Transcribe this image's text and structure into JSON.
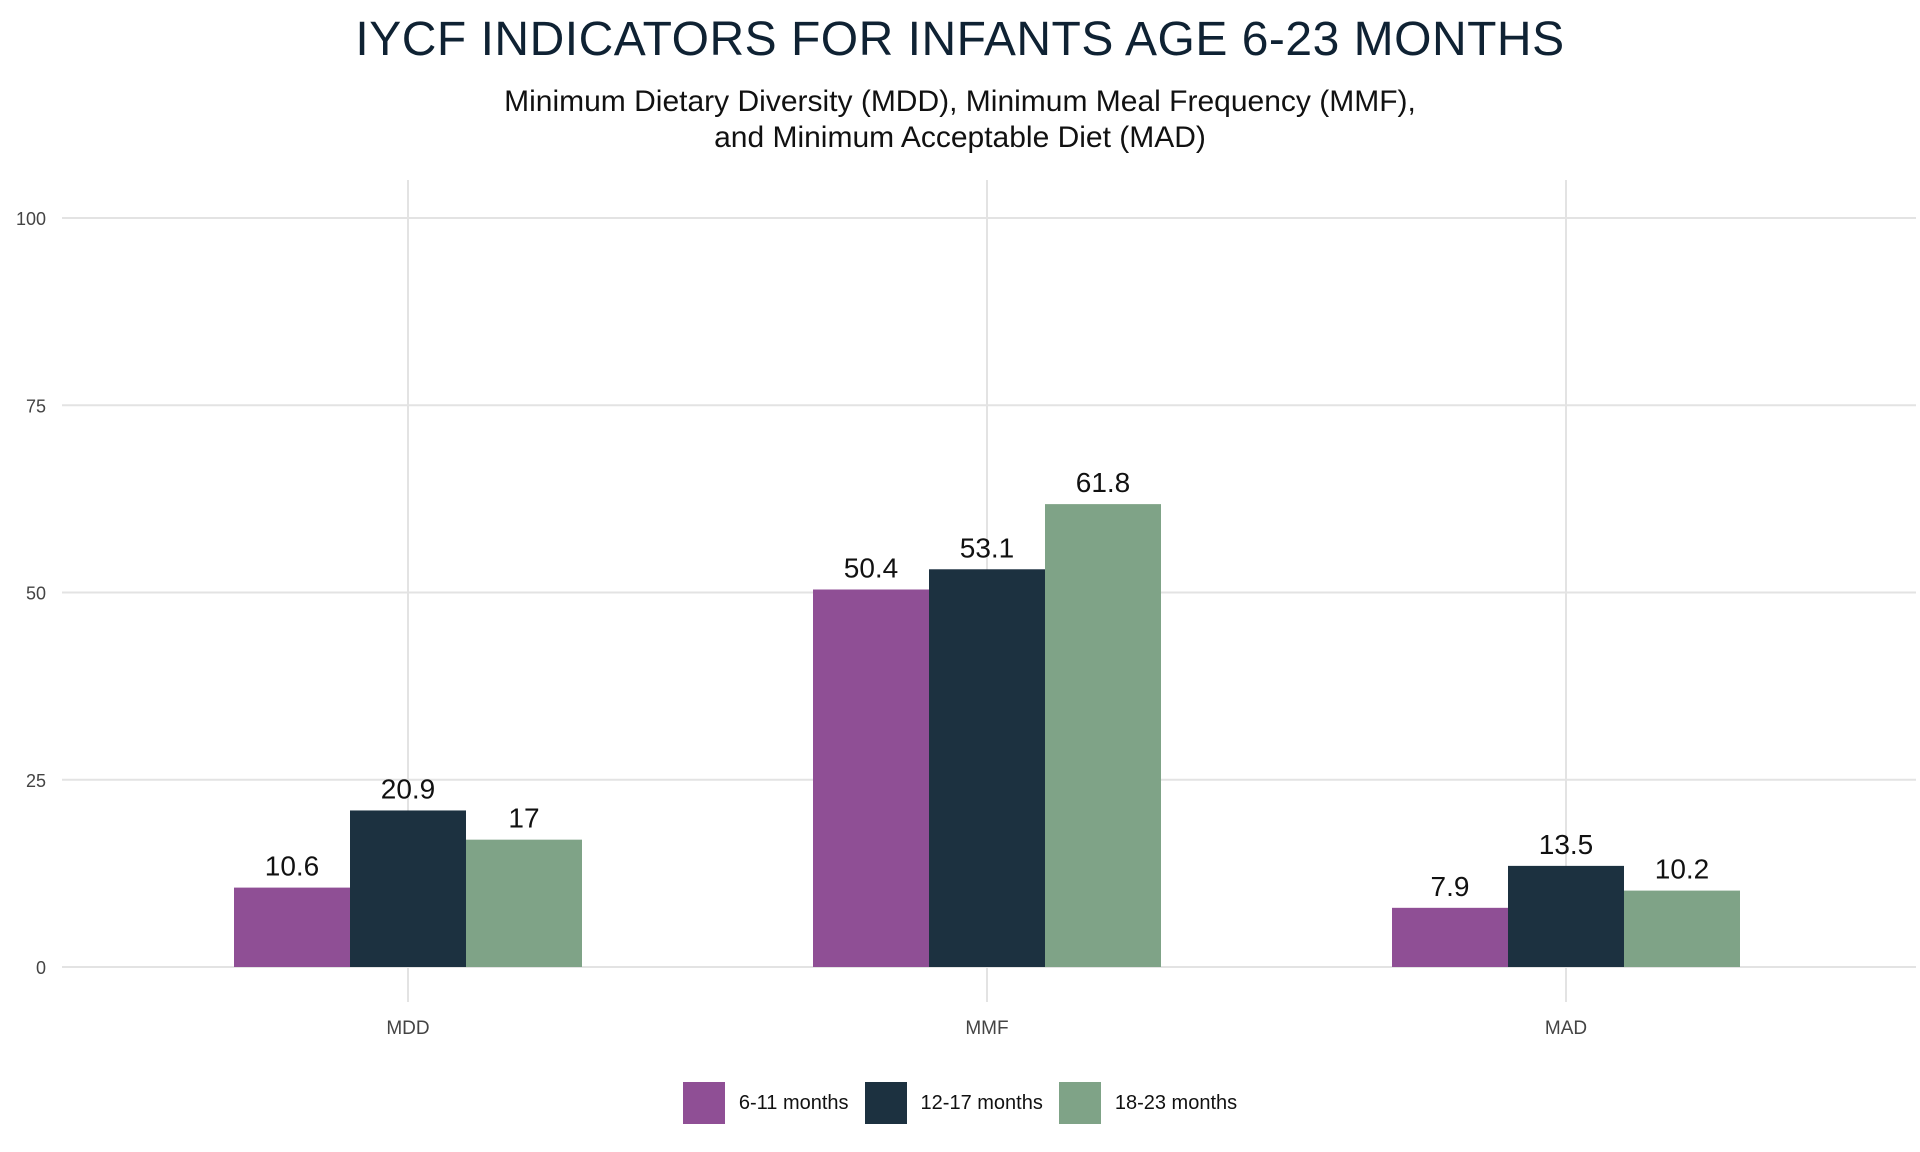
{
  "chart_data": {
    "type": "bar",
    "title": "IYCF INDICATORS FOR INFANTS AGE 6-23 MONTHS",
    "subtitle_lines": [
      "Minimum Dietary Diversity (MDD), Minimum Meal Frequency (MMF),",
      "and Minimum Acceptable Diet (MAD)"
    ],
    "xlabel": "",
    "ylabel": "",
    "categories": [
      "MDD",
      "MMF",
      "MAD"
    ],
    "series": [
      {
        "name": "6-11 months",
        "values": [
          10.6,
          50.4,
          7.9
        ],
        "labels": [
          "10.6",
          "50.4",
          "7.9"
        ],
        "color": "#8f4f95"
      },
      {
        "name": "12-17 months",
        "values": [
          20.9,
          53.1,
          13.5
        ],
        "labels": [
          "20.9",
          "53.1",
          "13.5"
        ],
        "color": "#1c3140"
      },
      {
        "name": "18-23 months",
        "values": [
          17,
          61.8,
          10.2
        ],
        "labels": [
          "17",
          "61.8",
          "10.2"
        ],
        "color": "#7fa387"
      }
    ],
    "ylim": [
      0,
      100
    ],
    "yticks": [
      0,
      25,
      50,
      75,
      100
    ],
    "grid": true,
    "legend_position": "bottom"
  }
}
